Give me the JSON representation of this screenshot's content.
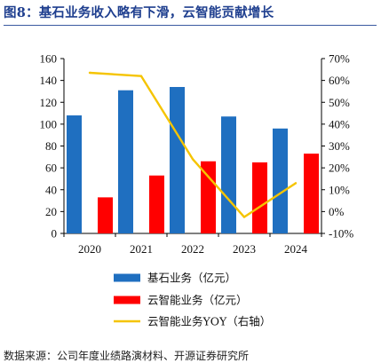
{
  "header": {
    "title": "图8：基石业务收入略有下滑，云智能贡献增长"
  },
  "footer": {
    "source": "数据来源：公司年度业绩路演材料、开源证券研究所"
  },
  "colors": {
    "series_a": "#1f6fc0",
    "series_b": "#ff0000",
    "series_c": "#f5c400",
    "title": "#1f3f8f"
  },
  "chart_data": {
    "type": "bar",
    "categories": [
      "2020",
      "2021",
      "2022",
      "2023",
      "2024"
    ],
    "left_axis": {
      "min": 0,
      "max": 160,
      "step": 20,
      "ticks": [
        "0",
        "20",
        "40",
        "60",
        "80",
        "100",
        "120",
        "140",
        "160"
      ]
    },
    "right_axis": {
      "min": -10,
      "max": 70,
      "step": 10,
      "ticks": [
        "-10%",
        "0%",
        "10%",
        "20%",
        "30%",
        "40%",
        "50%",
        "60%",
        "70%"
      ]
    },
    "series": [
      {
        "name": "基石业务（亿元）",
        "kind": "bar",
        "axis": "left",
        "values": [
          108,
          131,
          134,
          107,
          96
        ]
      },
      {
        "name": "云智能业务（亿元）",
        "kind": "bar",
        "axis": "left",
        "values": [
          33,
          53,
          66,
          65,
          73
        ]
      },
      {
        "name": "云智能业务YOY（右轴）",
        "kind": "line",
        "axis": "right",
        "values": [
          63.5,
          62,
          24,
          -2.5,
          13
        ]
      }
    ],
    "grid": false,
    "legend_position": "bottom"
  }
}
